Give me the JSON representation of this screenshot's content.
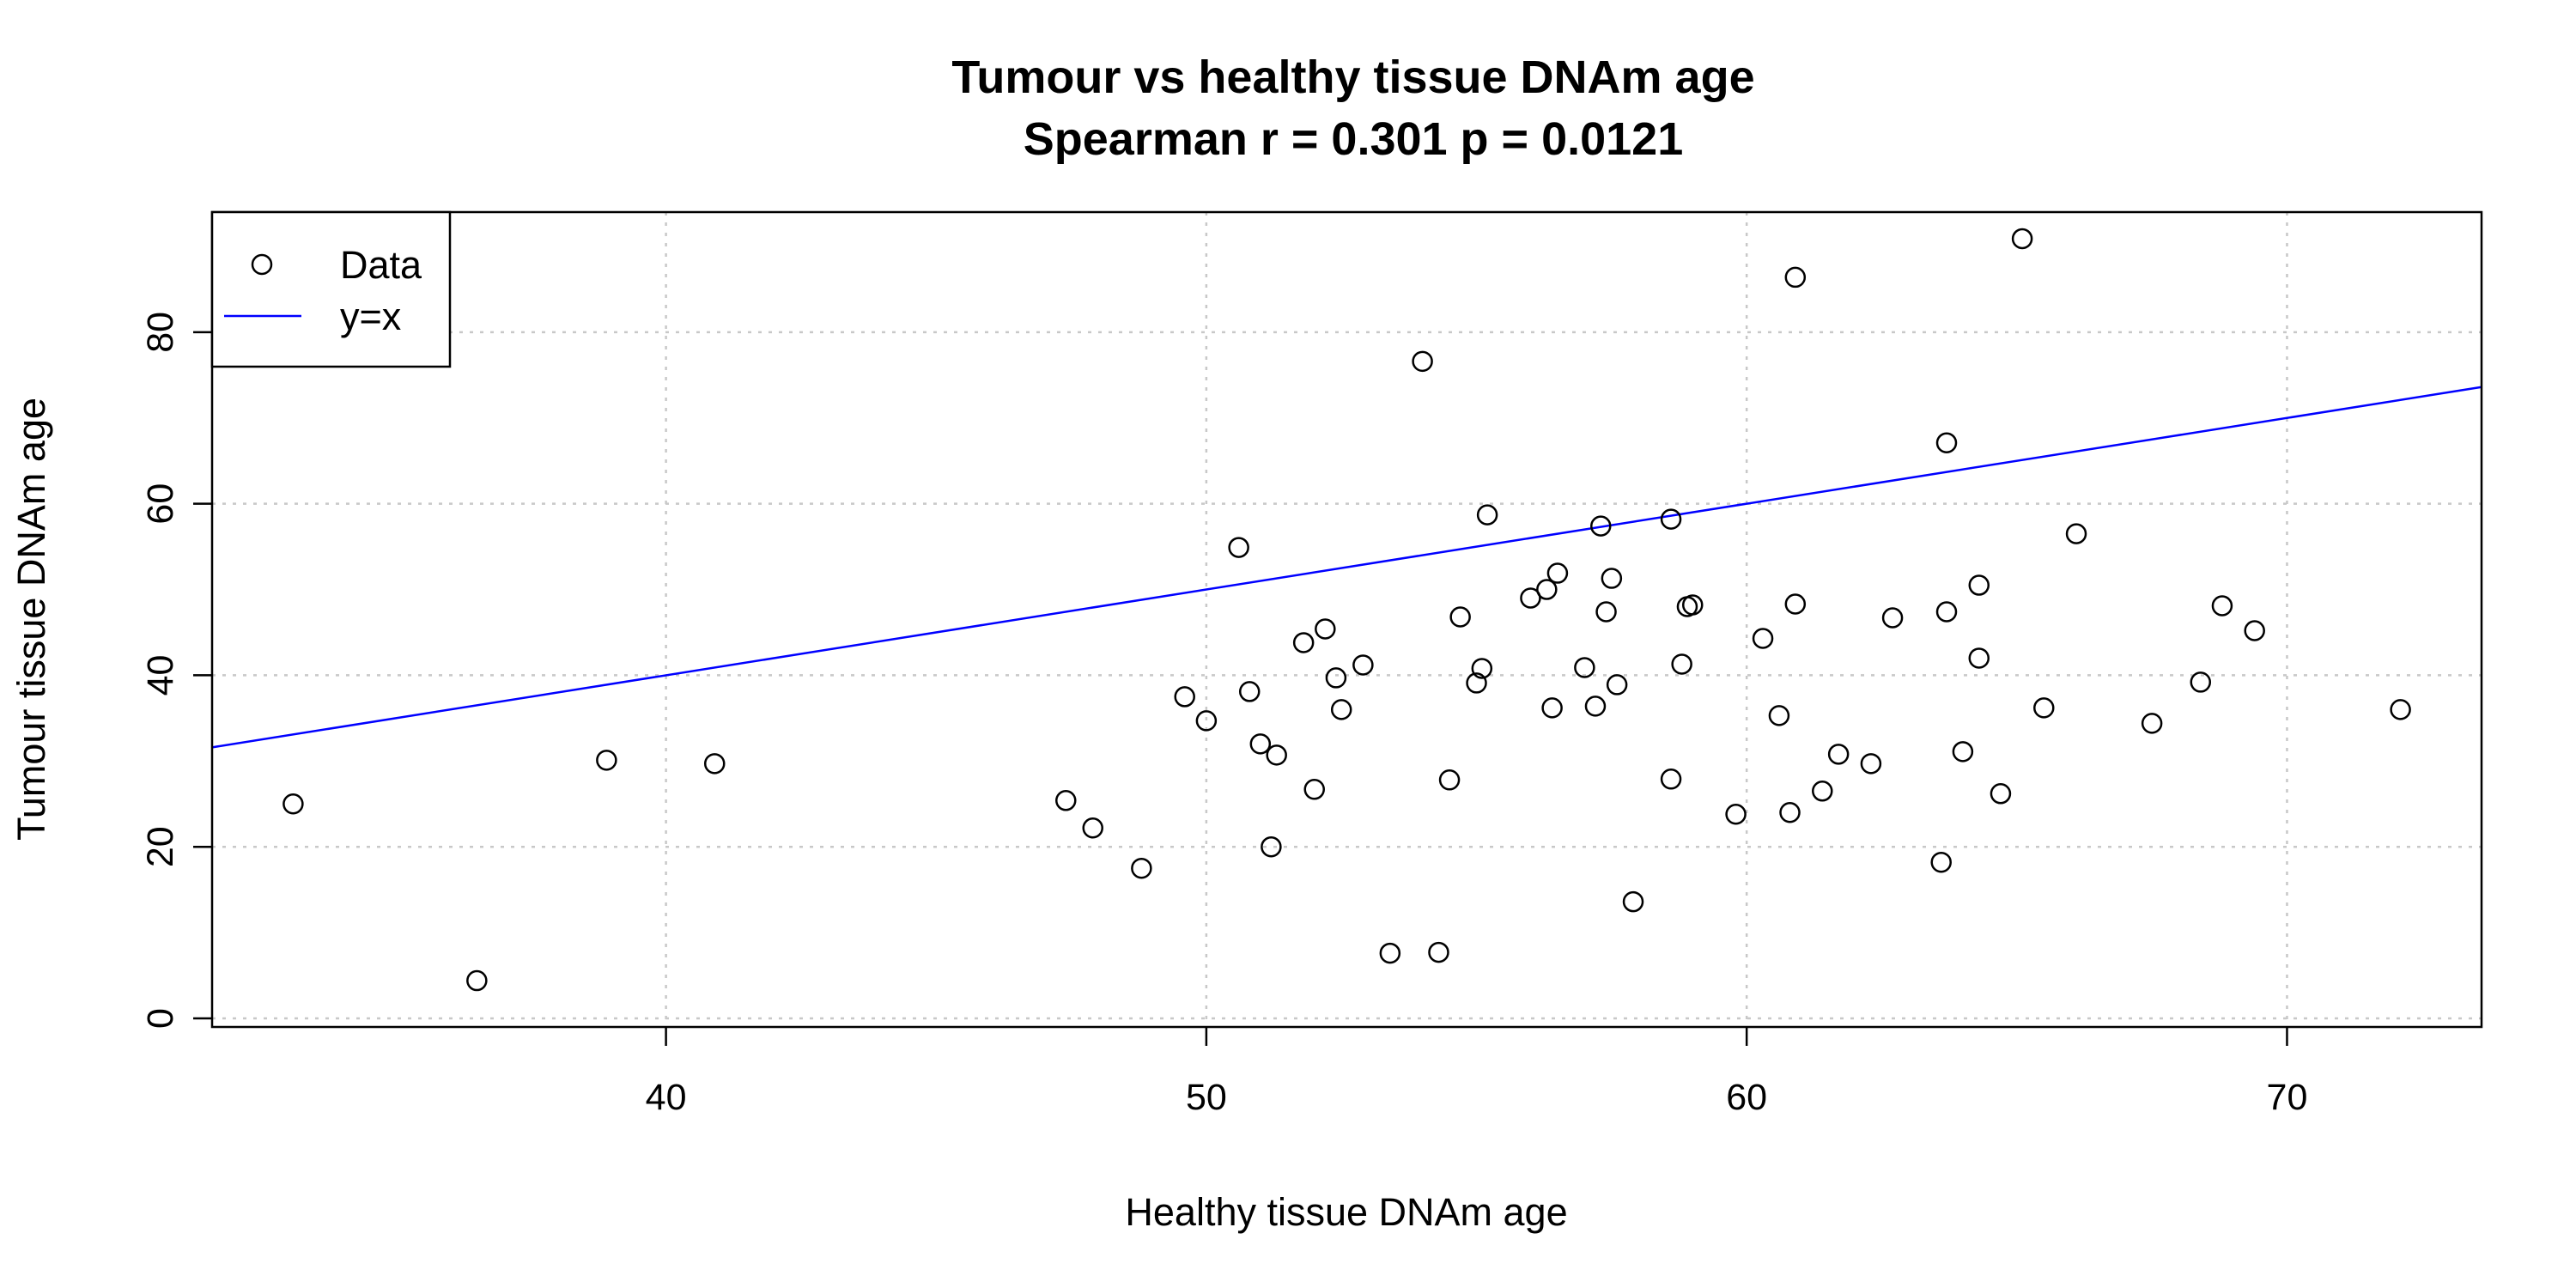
{
  "chart_data": {
    "type": "scatter",
    "title": "Tumour vs healthy tissue DNAm age",
    "subtitle": "Spearman r = 0.301 p =  0.0121",
    "xlabel": "Healthy tissue DNAm age",
    "ylabel": "Tumour tissue DNAm age",
    "xlim": [
      31.6,
      73.6
    ],
    "ylim": [
      -1,
      94
    ],
    "xticks": [
      40,
      50,
      60,
      70
    ],
    "yticks": [
      0,
      20,
      40,
      60,
      80
    ],
    "grid": true,
    "legend_position": "top-left",
    "legend": [
      {
        "label": "Data",
        "marker": "open-circle",
        "color": "#000000"
      },
      {
        "label": "y=x",
        "marker": "line",
        "color": "#0000ff"
      }
    ],
    "reference_line": {
      "name": "y=x",
      "slope": 1,
      "intercept": 0,
      "color": "#0000ff"
    },
    "series": [
      {
        "name": "Data",
        "color": "#000000",
        "points": [
          [
            33.1,
            25.0
          ],
          [
            36.5,
            4.4
          ],
          [
            38.9,
            30.1
          ],
          [
            40.9,
            29.7
          ],
          [
            47.4,
            25.4
          ],
          [
            47.9,
            22.2
          ],
          [
            48.8,
            17.5
          ],
          [
            49.6,
            37.5
          ],
          [
            50.0,
            34.7
          ],
          [
            50.6,
            54.9
          ],
          [
            50.8,
            38.1
          ],
          [
            51.0,
            32.0
          ],
          [
            51.2,
            20.0
          ],
          [
            51.3,
            30.7
          ],
          [
            51.8,
            43.8
          ],
          [
            52.0,
            26.7
          ],
          [
            52.2,
            45.4
          ],
          [
            52.4,
            39.7
          ],
          [
            52.5,
            36.0
          ],
          [
            52.9,
            41.2
          ],
          [
            53.4,
            7.6
          ],
          [
            54.0,
            76.6
          ],
          [
            54.3,
            7.7
          ],
          [
            54.5,
            27.8
          ],
          [
            54.7,
            46.8
          ],
          [
            55.0,
            39.1
          ],
          [
            55.1,
            40.8
          ],
          [
            55.2,
            58.7
          ],
          [
            56.0,
            49.0
          ],
          [
            56.3,
            50.0
          ],
          [
            56.4,
            36.2
          ],
          [
            56.5,
            51.9
          ],
          [
            57.0,
            40.9
          ],
          [
            57.2,
            36.4
          ],
          [
            57.3,
            57.4
          ],
          [
            57.4,
            47.4
          ],
          [
            57.5,
            51.3
          ],
          [
            57.6,
            38.9
          ],
          [
            57.9,
            13.6
          ],
          [
            58.6,
            58.2
          ],
          [
            58.6,
            27.9
          ],
          [
            58.8,
            41.3
          ],
          [
            58.9,
            48.0
          ],
          [
            59.0,
            48.2
          ],
          [
            59.8,
            23.8
          ],
          [
            60.3,
            44.3
          ],
          [
            60.6,
            35.3
          ],
          [
            60.8,
            24.0
          ],
          [
            60.9,
            48.3
          ],
          [
            60.9,
            86.4
          ],
          [
            61.4,
            26.5
          ],
          [
            61.7,
            30.8
          ],
          [
            62.3,
            29.7
          ],
          [
            62.7,
            46.7
          ],
          [
            63.6,
            18.2
          ],
          [
            63.7,
            47.4
          ],
          [
            63.7,
            67.1
          ],
          [
            64.0,
            31.1
          ],
          [
            64.3,
            50.5
          ],
          [
            64.3,
            42.0
          ],
          [
            64.7,
            26.2
          ],
          [
            65.1,
            90.9
          ],
          [
            65.5,
            36.2
          ],
          [
            66.1,
            56.5
          ],
          [
            67.5,
            34.4
          ],
          [
            68.4,
            39.2
          ],
          [
            68.8,
            48.1
          ],
          [
            69.4,
            45.2
          ],
          [
            72.1,
            36.0
          ]
        ]
      }
    ]
  }
}
